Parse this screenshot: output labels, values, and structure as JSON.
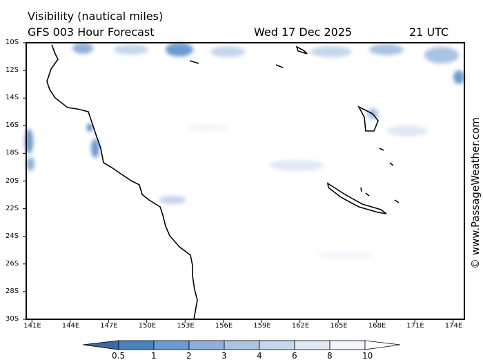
{
  "header": {
    "title": "Visibility (nautical miles)",
    "subtitle": "GFS 003 Hour Forecast",
    "date": "Wed 17 Dec 2025",
    "time": "21 UTC"
  },
  "map": {
    "lat_labels": [
      "10S",
      "12S",
      "14S",
      "16S",
      "18S",
      "20S",
      "22S",
      "24S",
      "26S",
      "28S",
      "30S"
    ],
    "lon_labels": [
      "141E",
      "144E",
      "147E",
      "150E",
      "153E",
      "156E",
      "159E",
      "162E",
      "165E",
      "168E",
      "171E",
      "174E"
    ],
    "lat_range": [
      -10,
      -30
    ],
    "lon_range": [
      140.5,
      175
    ]
  },
  "legend": {
    "labels": [
      "0.5",
      "1",
      "2",
      "3",
      "4",
      "6",
      "8",
      "10"
    ],
    "colors": [
      "#3c6aa0",
      "#4a82c0",
      "#6a9bd2",
      "#8eb0d8",
      "#a9c3e1",
      "#c4d7eb",
      "#e0e9f4",
      "#f2f6fb",
      "#ffffff"
    ]
  },
  "credit": "© www.PassageWeather.com"
}
